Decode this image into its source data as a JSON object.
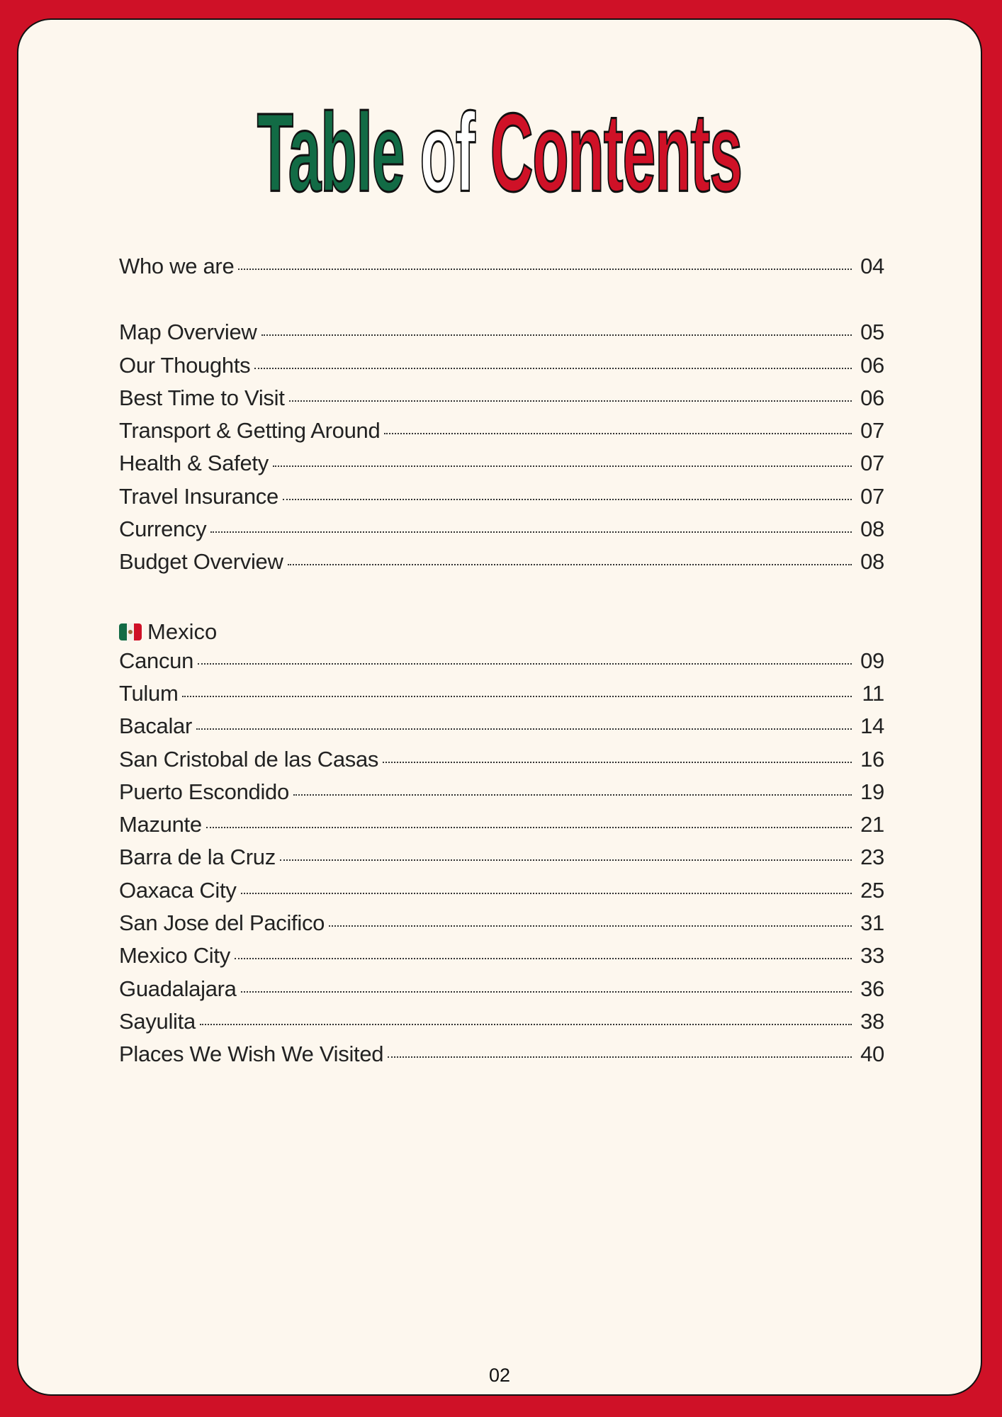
{
  "title": {
    "word1": "Table",
    "word2": "of",
    "word3": "Contents"
  },
  "colors": {
    "green": "#126b45",
    "white": "#ffffff",
    "red": "#cf1127",
    "background": "#fdf7ee"
  },
  "intro": [
    {
      "label": "Who we are",
      "page": "04"
    }
  ],
  "general": [
    {
      "label": "Map Overview",
      "page": "05"
    },
    {
      "label": "Our Thoughts",
      "page": "06"
    },
    {
      "label": "Best Time to Visit",
      "page": "06"
    },
    {
      "label": "Transport & Getting Around",
      "page": "07"
    },
    {
      "label": "Health & Safety",
      "page": "07"
    },
    {
      "label": "Travel Insurance",
      "page": "07"
    },
    {
      "label": "Currency",
      "page": "08"
    },
    {
      "label": "Budget Overview",
      "page": "08"
    }
  ],
  "section": {
    "icon": "mexico-flag-icon",
    "label": "Mexico"
  },
  "places": [
    {
      "label": "Cancun",
      "page": "09"
    },
    {
      "label": "Tulum",
      "page": "11"
    },
    {
      "label": "Bacalar",
      "page": "14"
    },
    {
      "label": "San Cristobal de las Casas",
      "page": "16"
    },
    {
      "label": "Puerto Escondido",
      "page": "19"
    },
    {
      "label": "Mazunte",
      "page": "21"
    },
    {
      "label": "Barra de la Cruz",
      "page": "23"
    },
    {
      "label": "Oaxaca City",
      "page": "25"
    },
    {
      "label": "San Jose del Pacifico",
      "page": "31"
    },
    {
      "label": "Mexico City",
      "page": "33"
    },
    {
      "label": "Guadalajara",
      "page": "36"
    },
    {
      "label": "Sayulita",
      "page": "38"
    },
    {
      "label": "Places We Wish We Visited",
      "page": "40"
    }
  ],
  "page_number": "02"
}
